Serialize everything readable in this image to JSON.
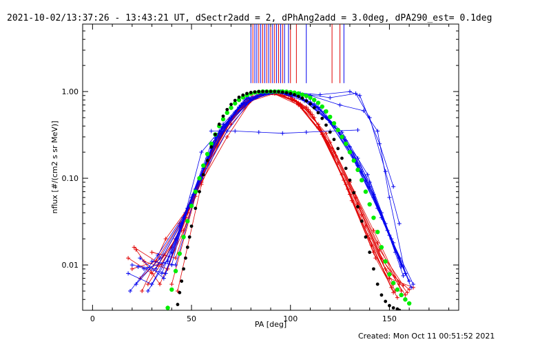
{
  "title": "2021-10-02/13:37:26 - 13:43:21 UT, dSectr2add = 2, dPhAng2add = 3.0deg, dPA290_est=  0.1deg",
  "footer": "Created: Mon Oct 11 00:51:52 2021",
  "colors": {
    "red": "#e00000",
    "blue": "#0000ee",
    "green": "#00ee00",
    "black": "#000000"
  },
  "chart_data": {
    "type": "line",
    "xlabel": "PA [deg]",
    "ylabel": "nflux [#/(cm2 s sr MeV)]",
    "xlim": [
      -5,
      185
    ],
    "ylim": [
      0.003,
      6.0
    ],
    "yscale": "log",
    "x_ticks": [
      0,
      50,
      100,
      150
    ],
    "x_tick_labels": [
      "0",
      "50",
      "100",
      "150"
    ],
    "y_ticks": [
      0.01,
      0.1,
      1.0
    ],
    "y_tick_labels": [
      "0.01",
      "0.10",
      "1.00"
    ],
    "grid": false,
    "series": [
      {
        "color": "#00ee00",
        "style": "filled-circles",
        "x": [
          38,
          40,
          42,
          44,
          46,
          48,
          50,
          52,
          54,
          56,
          58,
          60,
          62,
          64,
          66,
          68,
          70,
          72,
          74,
          76,
          78,
          80,
          82,
          84,
          86,
          88,
          90,
          92,
          94,
          96,
          98,
          100,
          102,
          104,
          106,
          108,
          110,
          112,
          114,
          116,
          118,
          120,
          122,
          124,
          126,
          128,
          130,
          132,
          134,
          136,
          138,
          140,
          142,
          144,
          146,
          148,
          150,
          152,
          154,
          156,
          158,
          160
        ],
        "y": [
          0.0032,
          0.0052,
          0.0085,
          0.0135,
          0.021,
          0.032,
          0.048,
          0.07,
          0.1,
          0.14,
          0.19,
          0.25,
          0.32,
          0.4,
          0.48,
          0.57,
          0.65,
          0.73,
          0.8,
          0.86,
          0.91,
          0.95,
          0.975,
          0.99,
          1.0,
          1.0,
          1.0,
          1.0,
          1.0,
          1.0,
          0.995,
          0.985,
          0.97,
          0.95,
          0.92,
          0.89,
          0.85,
          0.8,
          0.74,
          0.67,
          0.59,
          0.51,
          0.43,
          0.36,
          0.3,
          0.25,
          0.2,
          0.16,
          0.125,
          0.095,
          0.07,
          0.05,
          0.035,
          0.024,
          0.016,
          0.011,
          0.0078,
          0.0062,
          0.0052,
          0.0045,
          0.004,
          0.0036
        ]
      },
      {
        "color": "#000000",
        "style": "filled-circles",
        "x": [
          43,
          44,
          45,
          46,
          47,
          48,
          49,
          50,
          52,
          54,
          56,
          58,
          60,
          62,
          64,
          66,
          68,
          70,
          72,
          74,
          76,
          78,
          80,
          82,
          84,
          86,
          88,
          90,
          92,
          94,
          96,
          98,
          100,
          102,
          104,
          106,
          108,
          110,
          112,
          114,
          116,
          118,
          120,
          122,
          124,
          126,
          128,
          130,
          132,
          134,
          136,
          138,
          140,
          142,
          144,
          146,
          148,
          150,
          152,
          154,
          155
        ],
        "y": [
          0.0035,
          0.0048,
          0.0065,
          0.009,
          0.012,
          0.016,
          0.021,
          0.028,
          0.045,
          0.07,
          0.11,
          0.16,
          0.23,
          0.32,
          0.42,
          0.52,
          0.62,
          0.71,
          0.79,
          0.86,
          0.91,
          0.95,
          0.975,
          0.99,
          1.0,
          1.0,
          1.0,
          1.0,
          1.0,
          0.995,
          0.985,
          0.97,
          0.95,
          0.92,
          0.88,
          0.84,
          0.78,
          0.72,
          0.65,
          0.57,
          0.49,
          0.41,
          0.34,
          0.28,
          0.22,
          0.17,
          0.13,
          0.095,
          0.068,
          0.047,
          0.032,
          0.021,
          0.014,
          0.009,
          0.006,
          0.0045,
          0.0038,
          0.0034,
          0.0032,
          0.0031,
          0.003
        ]
      }
    ],
    "red_measurements": [
      {
        "x": [
          18,
          30,
          42,
          55,
          68,
          80,
          92,
          105,
          118,
          130,
          142,
          155
        ],
        "y": [
          0.012,
          0.008,
          0.02,
          0.09,
          0.3,
          0.78,
          0.95,
          0.72,
          0.33,
          0.09,
          0.025,
          0.006
        ]
      },
      {
        "x": [
          20,
          32,
          44,
          56,
          70,
          83,
          96,
          108,
          120,
          132,
          144,
          156
        ],
        "y": [
          0.009,
          0.011,
          0.03,
          0.12,
          0.42,
          0.9,
          1.0,
          0.66,
          0.26,
          0.07,
          0.018,
          0.005
        ]
      },
      {
        "x": [
          22,
          34,
          46,
          58,
          72,
          85,
          98,
          110,
          122,
          134,
          146,
          158
        ],
        "y": [
          0.015,
          0.006,
          0.025,
          0.15,
          0.55,
          0.95,
          0.93,
          0.58,
          0.2,
          0.05,
          0.012,
          0.0045
        ]
      },
      {
        "x": [
          24,
          36,
          48,
          60,
          74,
          87,
          100,
          112,
          124,
          136,
          148,
          160
        ],
        "y": [
          0.007,
          0.013,
          0.04,
          0.2,
          0.62,
          0.97,
          0.88,
          0.5,
          0.15,
          0.038,
          0.009,
          0.0052
        ]
      },
      {
        "x": [
          26,
          38,
          50,
          62,
          76,
          88,
          101,
          114,
          126,
          138,
          150,
          162
        ],
        "y": [
          0.011,
          0.009,
          0.055,
          0.27,
          0.7,
          1.0,
          0.82,
          0.42,
          0.11,
          0.028,
          0.007,
          0.0055
        ]
      },
      {
        "x": [
          28,
          40,
          52,
          64,
          77,
          90,
          103,
          115,
          128,
          140,
          152
        ],
        "y": [
          0.006,
          0.016,
          0.07,
          0.33,
          0.76,
          0.98,
          0.76,
          0.36,
          0.085,
          0.02,
          0.006
        ]
      },
      {
        "x": [
          30,
          42,
          54,
          66,
          78,
          91,
          104,
          117,
          130,
          142,
          153
        ],
        "y": [
          0.014,
          0.012,
          0.09,
          0.4,
          0.82,
          0.96,
          0.7,
          0.3,
          0.065,
          0.014,
          0.005
        ]
      },
      {
        "x": [
          25,
          37,
          49,
          61,
          73,
          86,
          99,
          111,
          123,
          135,
          147,
          159
        ],
        "y": [
          0.005,
          0.02,
          0.048,
          0.22,
          0.6,
          0.93,
          0.9,
          0.54,
          0.18,
          0.045,
          0.011,
          0.0048
        ]
      },
      {
        "x": [
          33,
          45,
          57,
          69,
          81,
          94,
          106,
          119,
          131,
          143,
          154
        ],
        "y": [
          0.01,
          0.025,
          0.13,
          0.48,
          0.88,
          0.99,
          0.64,
          0.26,
          0.055,
          0.012,
          0.0042
        ]
      },
      {
        "x": [
          21,
          35,
          47,
          59,
          71,
          84,
          97,
          109,
          121,
          133,
          145,
          157
        ],
        "y": [
          0.016,
          0.01,
          0.035,
          0.17,
          0.5,
          0.92,
          0.97,
          0.62,
          0.22,
          0.06,
          0.015,
          0.0058
        ]
      },
      {
        "x": [
          40,
          52,
          64,
          76,
          89,
          102,
          114,
          127,
          139,
          151
        ],
        "y": [
          0.006,
          0.062,
          0.3,
          0.72,
          0.98,
          0.8,
          0.38,
          0.095,
          0.022,
          0.0055
        ]
      },
      {
        "x": [
          43,
          55,
          67,
          79,
          92,
          104,
          116,
          129,
          141,
          152
        ],
        "y": [
          0.005,
          0.085,
          0.38,
          0.8,
          1.0,
          0.74,
          0.32,
          0.075,
          0.017,
          0.0048
        ]
      }
    ],
    "blue_measurements": [
      {
        "x": [
          18,
          30,
          42,
          55,
          68,
          80,
          92,
          105,
          118,
          130,
          142,
          155
        ],
        "y": [
          0.008,
          0.006,
          0.02,
          0.1,
          0.35,
          0.8,
          0.98,
          0.85,
          0.5,
          0.2,
          0.06,
          0.012
        ]
      },
      {
        "x": [
          20,
          32,
          44,
          56,
          70,
          83,
          96,
          108,
          120,
          132,
          144,
          156
        ],
        "y": [
          0.01,
          0.009,
          0.028,
          0.13,
          0.48,
          0.9,
          1.0,
          0.8,
          0.44,
          0.16,
          0.045,
          0.01
        ]
      },
      {
        "x": [
          22,
          34,
          46,
          58,
          72,
          85,
          98,
          110,
          122,
          134,
          146,
          158
        ],
        "y": [
          0.006,
          0.012,
          0.035,
          0.17,
          0.58,
          0.95,
          0.97,
          0.76,
          0.4,
          0.14,
          0.035,
          0.008
        ]
      },
      {
        "x": [
          24,
          36,
          48,
          60,
          74,
          87,
          100,
          112,
          124,
          136,
          148,
          160
        ],
        "y": [
          0.012,
          0.007,
          0.045,
          0.22,
          0.66,
          0.98,
          0.95,
          0.72,
          0.36,
          0.12,
          0.03,
          0.0065
        ]
      },
      {
        "x": [
          26,
          38,
          50,
          62,
          76,
          88,
          101,
          114,
          126,
          138,
          150,
          162
        ],
        "y": [
          0.009,
          0.011,
          0.06,
          0.29,
          0.74,
          1.0,
          0.92,
          0.66,
          0.3,
          0.095,
          0.022,
          0.006
        ]
      },
      {
        "x": [
          28,
          40,
          52,
          64,
          77,
          90,
          103,
          115,
          128,
          140,
          152
        ],
        "y": [
          0.005,
          0.014,
          0.075,
          0.35,
          0.8,
          0.99,
          0.9,
          0.62,
          0.27,
          0.08,
          0.018
        ]
      },
      {
        "x": [
          30,
          42,
          54,
          66,
          78,
          91,
          104,
          117,
          130,
          142,
          153
        ],
        "y": [
          0.011,
          0.01,
          0.095,
          0.42,
          0.85,
          0.98,
          0.88,
          0.58,
          0.23,
          0.065,
          0.014
        ]
      },
      {
        "x": [
          40,
          55,
          70,
          85,
          100,
          115,
          130,
          135,
          145,
          152
        ],
        "y": [
          0.01,
          0.2,
          0.5,
          0.96,
          0.98,
          0.92,
          1.0,
          0.9,
          0.25,
          0.08
        ]
      },
      {
        "x": [
          45,
          60,
          75,
          90,
          105,
          120,
          133,
          140,
          148,
          155
        ],
        "y": [
          0.03,
          0.25,
          0.68,
          0.99,
          0.95,
          0.85,
          0.95,
          0.5,
          0.12,
          0.03
        ]
      },
      {
        "x": [
          50,
          65,
          80,
          95,
          110,
          125,
          137,
          144,
          150,
          158
        ],
        "y": [
          0.05,
          0.33,
          0.82,
          1.0,
          0.9,
          0.7,
          0.6,
          0.35,
          0.06,
          0.008
        ]
      },
      {
        "x": [
          35,
          48,
          61,
          74,
          87,
          100,
          113,
          126,
          139,
          151,
          161
        ],
        "y": [
          0.008,
          0.045,
          0.25,
          0.66,
          0.97,
          0.95,
          0.68,
          0.34,
          0.11,
          0.02,
          0.0055
        ]
      },
      {
        "x": [
          19,
          33,
          47,
          62,
          75,
          88,
          101,
          114,
          127,
          140,
          149,
          157
        ],
        "y": [
          0.005,
          0.013,
          0.04,
          0.29,
          0.7,
          0.99,
          0.93,
          0.65,
          0.3,
          0.09,
          0.025,
          0.0075
        ]
      },
      {
        "x": [
          23,
          37,
          51,
          65,
          79,
          93,
          107,
          121,
          134,
          146,
          156
        ],
        "y": [
          0.0095,
          0.008,
          0.065,
          0.38,
          0.84,
          0.99,
          0.78,
          0.42,
          0.17,
          0.04,
          0.0095
        ]
      },
      {
        "x": [
          60,
          72,
          84,
          96,
          108,
          120,
          134
        ],
        "y": [
          0.35,
          0.35,
          0.34,
          0.33,
          0.34,
          0.35,
          0.36
        ]
      }
    ],
    "red_vertical_lines": [
      81,
      84,
      86,
      88,
      90,
      92,
      94,
      96,
      100,
      103,
      121,
      125
    ],
    "blue_vertical_lines": [
      80,
      82,
      83,
      85,
      87,
      89,
      91,
      93,
      95,
      97,
      99,
      108,
      127
    ]
  }
}
